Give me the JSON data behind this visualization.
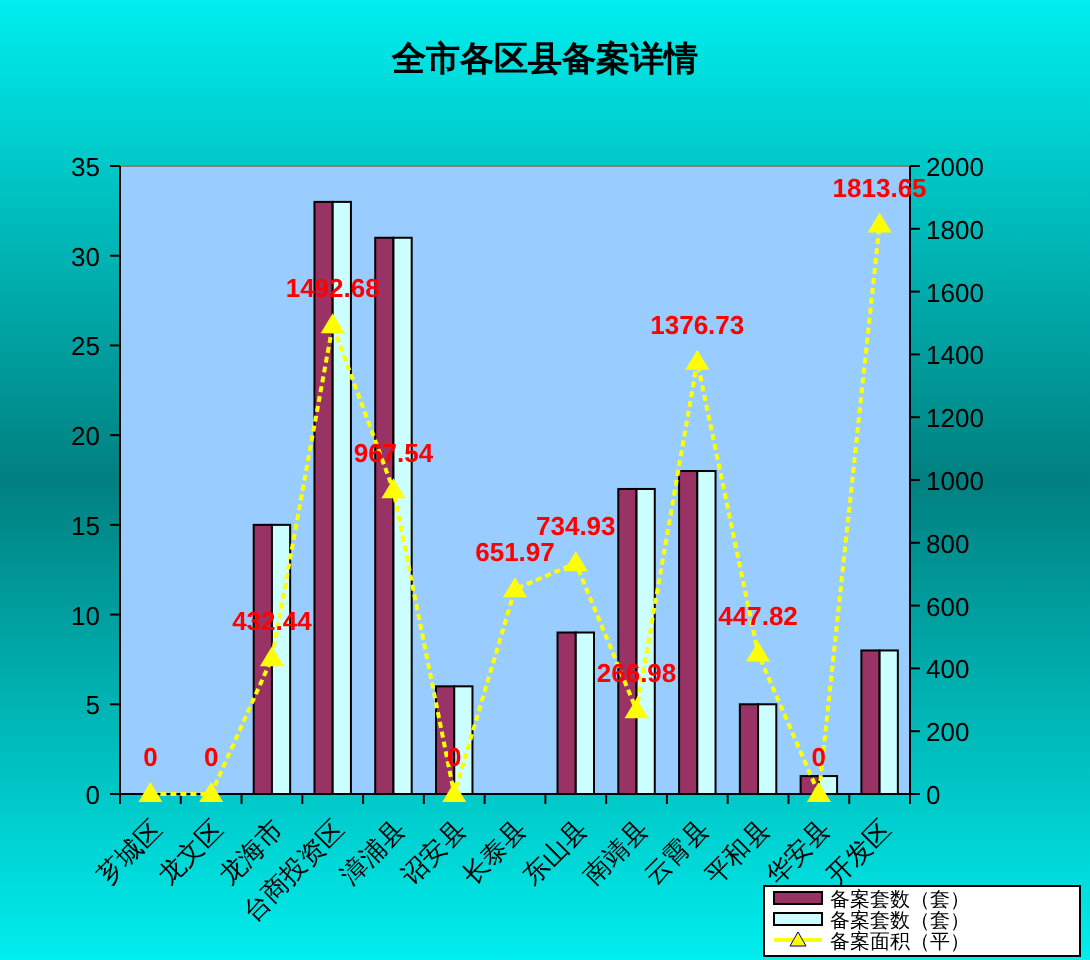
{
  "chart_data": {
    "type": "bar",
    "title": "全市各区县备案详情",
    "categories": [
      "芗城区",
      "龙文区",
      "龙海市",
      "台商投资区",
      "漳浦县",
      "诏安县",
      "长泰县",
      "东山县",
      "南靖县",
      "云霄县",
      "平和县",
      "华安县",
      "开发区"
    ],
    "series": [
      {
        "name": "备案套数（套）",
        "color": "#993366",
        "values": [
          0,
          0,
          15,
          33,
          31,
          6,
          0,
          9,
          17,
          18,
          5,
          1,
          8
        ]
      },
      {
        "name": "备案套数（套）",
        "color": "#ccffff",
        "values": [
          0,
          0,
          15,
          33,
          31,
          6,
          0,
          9,
          17,
          18,
          5,
          1,
          8
        ]
      },
      {
        "name": "备案面积（平）",
        "type": "line",
        "axis": "y2",
        "color": "#ffff00",
        "marker": "triangle",
        "line_style": "dashed",
        "data_labels": true,
        "values": [
          0,
          0,
          432.44,
          1492.68,
          967.54,
          0,
          651.97,
          734.93,
          266.98,
          1376.73,
          447.82,
          0,
          1813.65
        ]
      }
    ],
    "ylim": [
      0,
      35
    ],
    "yticks": [
      0,
      5,
      10,
      15,
      20,
      25,
      30,
      35
    ],
    "y2lim": [
      0,
      2000
    ],
    "y2ticks": [
      0,
      200,
      400,
      600,
      800,
      1000,
      1200,
      1400,
      1600,
      1800,
      2000
    ],
    "legend": "bottom right",
    "grid": false
  }
}
